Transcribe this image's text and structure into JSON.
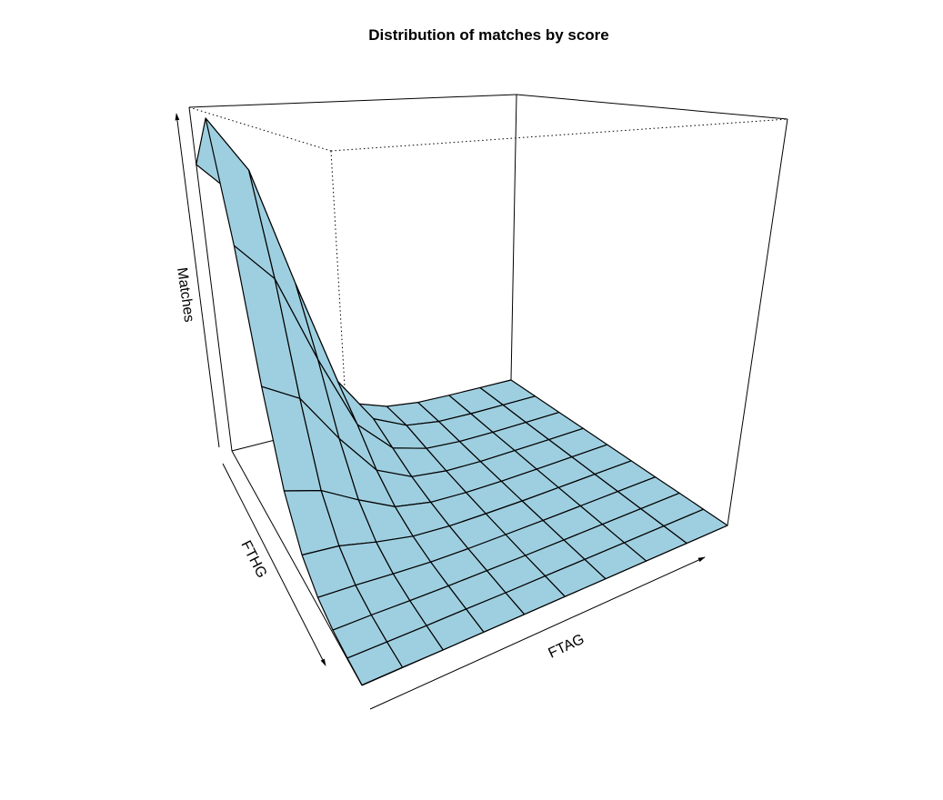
{
  "chart_data": {
    "type": "surface3d",
    "title": "Distribution of matches by score",
    "xlabel": "FTHG",
    "ylabel": "FTAG",
    "zlabel": "Matches",
    "x": [
      0,
      1,
      2,
      3,
      4,
      5,
      6,
      7,
      8,
      9
    ],
    "y": [
      0,
      1,
      2,
      3,
      4,
      5,
      6,
      7,
      8,
      9
    ],
    "z": [
      [
        100,
        88,
        52,
        20,
        6,
        2,
        0.5,
        0.2,
        0.1,
        0
      ],
      [
        118,
        100,
        60,
        24,
        8,
        2.5,
        0.6,
        0.2,
        0.1,
        0
      ],
      [
        80,
        68,
        40,
        16,
        5,
        1.5,
        0.4,
        0.1,
        0,
        0
      ],
      [
        42,
        36,
        21,
        8,
        2.5,
        0.8,
        0.2,
        0.1,
        0,
        0
      ],
      [
        18,
        15,
        9,
        3.5,
        1.2,
        0.4,
        0.1,
        0,
        0,
        0
      ],
      [
        7,
        6,
        3.5,
        1.4,
        0.5,
        0.2,
        0,
        0,
        0,
        0
      ],
      [
        2.5,
        2,
        1.2,
        0.5,
        0.2,
        0.1,
        0,
        0,
        0,
        0
      ],
      [
        0.8,
        0.7,
        0.4,
        0.2,
        0.1,
        0,
        0,
        0,
        0,
        0
      ],
      [
        0.3,
        0.2,
        0.1,
        0.1,
        0,
        0,
        0,
        0,
        0,
        0
      ],
      [
        0.1,
        0.1,
        0,
        0,
        0,
        0,
        0,
        0,
        0,
        0
      ]
    ],
    "zlim": [
      0,
      120
    ],
    "fill_color": "#9ecfe0",
    "edge_color": "#000000",
    "box": true,
    "ticks": false
  }
}
